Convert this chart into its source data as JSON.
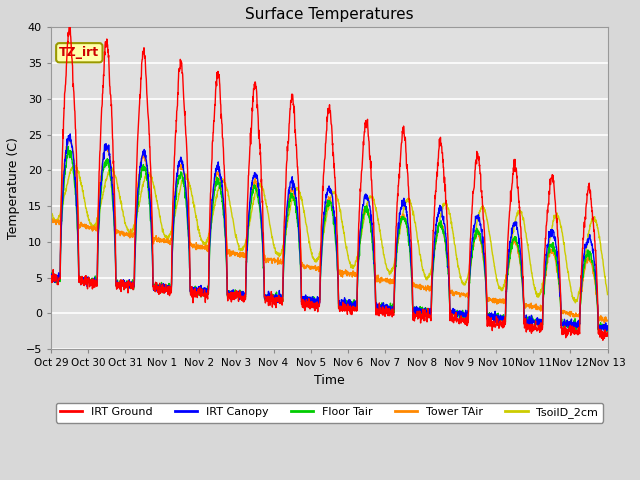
{
  "title": "Surface Temperatures",
  "xlabel": "Time",
  "ylabel": "Temperature (C)",
  "ylim": [
    -5,
    40
  ],
  "annotation_text": "TZ_irt",
  "legend_labels": [
    "IRT Ground",
    "IRT Canopy",
    "Floor Tair",
    "Tower TAir",
    "TsoilD_2cm"
  ],
  "legend_colors": [
    "#ff0000",
    "#0000ff",
    "#00cc00",
    "#ff8800",
    "#cccc00"
  ],
  "x_tick_labels": [
    "Oct 29",
    "Oct 30",
    "Oct 31",
    "Nov 1",
    "Nov 2",
    "Nov 3",
    "Nov 4",
    "Nov 5",
    "Nov 6",
    "Nov 7",
    "Nov 8",
    "Nov 9",
    "Nov 10",
    "Nov 11",
    "Nov 12",
    "Nov 13"
  ],
  "background_color": "#e0e0e0",
  "plot_bg_color": "#e0e0e0",
  "num_days": 15,
  "points_per_day": 144
}
